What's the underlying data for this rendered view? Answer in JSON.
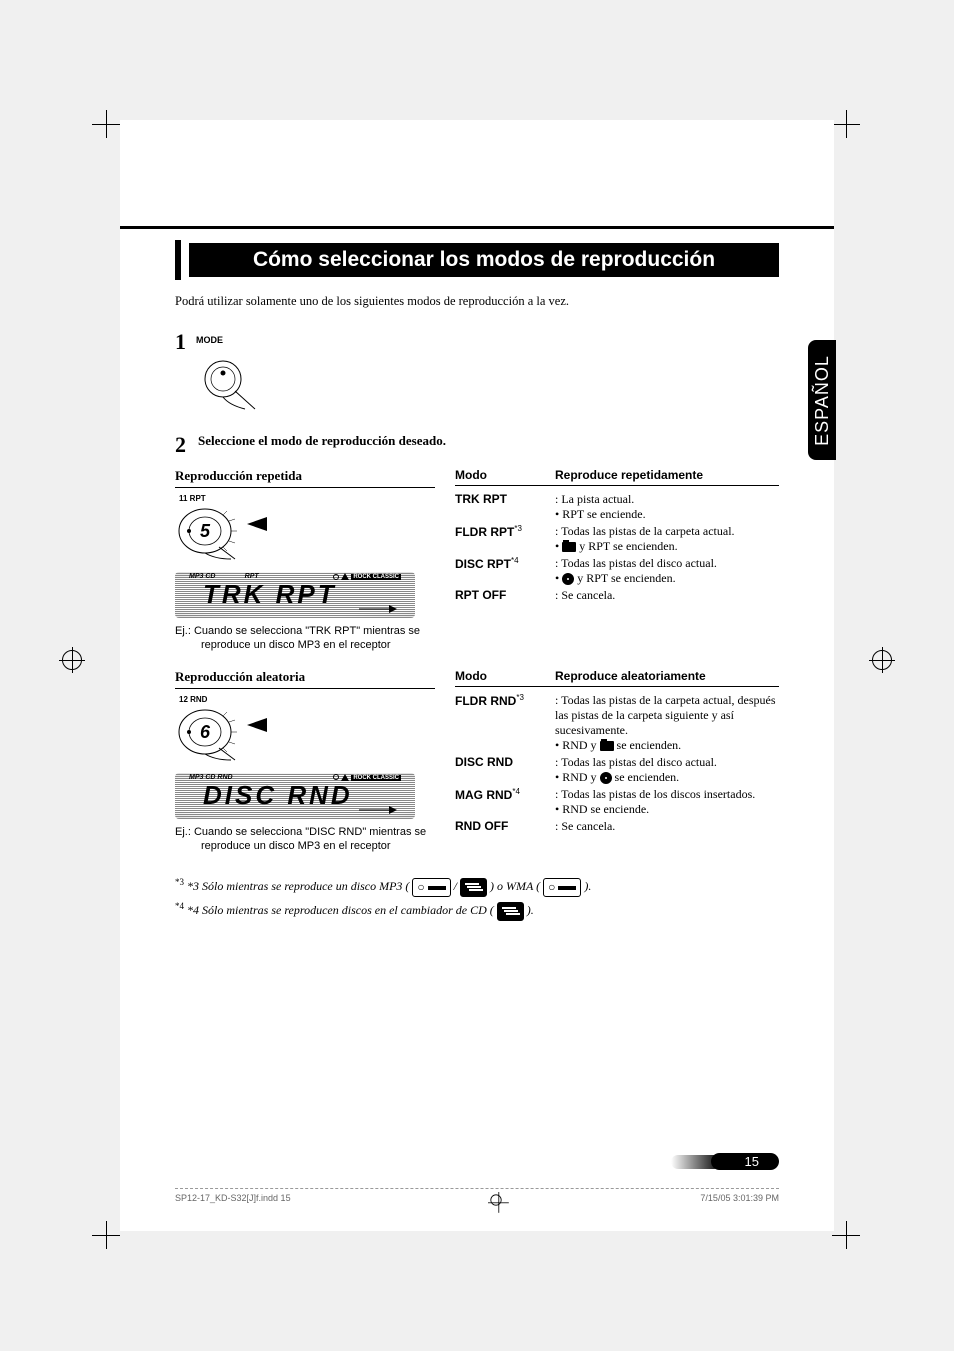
{
  "crop_colors": [
    "#00aeef",
    "#ec008c",
    "#fff200",
    "#000000",
    "#ffffff",
    "#000000",
    "#00aeef",
    "#ec008c",
    "#fff200",
    "#000000"
  ],
  "language_tab": "ESPAÑOL",
  "title_rule_color": "#000000",
  "title": "Cómo seleccionar los modos de reproducción",
  "intro": "Podrá utilizar solamente uno de los siguientes modos de reproducción a la vez.",
  "step1": {
    "num": "1",
    "mode_label": "MODE"
  },
  "step2": {
    "num": "2",
    "heading": "Seleccione el modo de reproducción deseado."
  },
  "repeat": {
    "heading_left": "Reproducción repetida",
    "dial_stub": "11  RPT",
    "dial_value": "5",
    "lcd_top_left": "MP3     CD",
    "lcd_top_mid": "RPT",
    "lcd_top_right": "ROCK CLASSIC",
    "lcd_main": "TRK  RPT",
    "example": "Ej.: Cuando se selecciona \"TRK RPT\" mientras se reproduce un disco MP3 en el receptor",
    "col_mode": "Modo",
    "col_desc": "Reproduce repetidamente",
    "rows": [
      {
        "mode": "TRK RPT",
        "sup": "",
        "lines": [
          ": La pista actual.",
          "• RPT se enciende."
        ]
      },
      {
        "mode": "FLDR RPT",
        "sup": "*3",
        "lines": [
          ": Todas las pistas de la carpeta actual.",
          "• FOLDER y RPT se encienden."
        ],
        "icon": "folder"
      },
      {
        "mode": "DISC RPT",
        "sup": "*4",
        "lines": [
          ": Todas las pistas del disco actual.",
          "• DISC y RPT se encienden."
        ],
        "icon": "disc"
      },
      {
        "mode": "RPT OFF",
        "sup": "",
        "lines": [
          ": Se cancela."
        ]
      }
    ]
  },
  "random": {
    "heading_left": "Reproducción aleatoria",
    "dial_stub": "12  RND",
    "dial_value": "6",
    "lcd_top_left": "MP3     CD    RND",
    "lcd_top_right": "ROCK CLASSIC",
    "lcd_main": "DISC RND",
    "example": "Ej.: Cuando se selecciona \"DISC RND\" mientras se reproduce un disco MP3 en el receptor",
    "col_mode": "Modo",
    "col_desc": "Reproduce aleatoriamente",
    "rows": [
      {
        "mode": "FLDR RND",
        "sup": "*3",
        "lines": [
          ": Todas las pistas de la carpeta actual, después las pistas de la carpeta siguiente y así sucesivamente.",
          "• RND y FOLDER se encienden."
        ],
        "icon": "folder"
      },
      {
        "mode": "DISC RND",
        "sup": "",
        "lines": [
          ": Todas las pistas del disco actual.",
          "• RND y DISC se encienden."
        ],
        "icon": "disc"
      },
      {
        "mode": "MAG RND",
        "sup": "*4",
        "lines": [
          ": Todas las pistas de los discos insertados.",
          "• RND se enciende."
        ]
      },
      {
        "mode": "RND OFF",
        "sup": "",
        "lines": [
          ": Se cancela."
        ]
      }
    ]
  },
  "footnotes": {
    "f3_pre": "*3  Sólo mientras se reproduce un disco MP3 ( ",
    "f3_mid": " / ",
    "f3_post": " ) o WMA ( ",
    "f3_end": " ).",
    "f4_pre": "*4  Sólo mientras se reproducen discos en el cambiador de CD ( ",
    "f4_end": " )."
  },
  "page_number": "15",
  "footer": {
    "left": "SP12-17_KD-S32[J]f.indd   15",
    "right": "7/15/05   3:01:39 PM"
  }
}
